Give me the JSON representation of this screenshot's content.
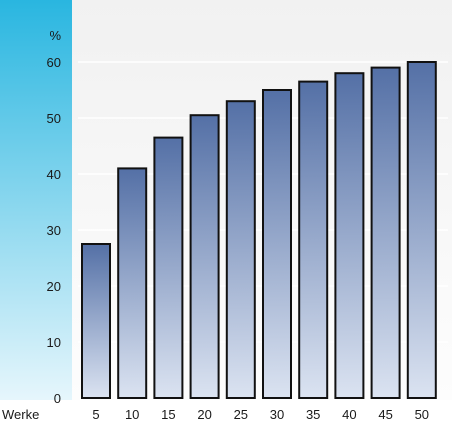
{
  "chart_data": {
    "type": "bar",
    "ylabel": "%",
    "xlabel": "Werke",
    "categories": [
      "5",
      "10",
      "15",
      "20",
      "25",
      "30",
      "35",
      "40",
      "45",
      "50"
    ],
    "values": [
      27.5,
      41,
      46.5,
      50.5,
      53,
      55,
      56.5,
      58,
      59,
      60
    ],
    "ylim": [
      0,
      60
    ],
    "yticks": [
      0,
      10,
      20,
      30,
      40,
      50,
      60
    ],
    "grid": true,
    "colors": {
      "left_band_top": "#29b6e0",
      "left_band_bottom": "#e6f6fc",
      "plot_bg_top": "#f1f1f1",
      "plot_bg_bottom": "#fdfdfd",
      "bar_top": "#5470a6",
      "bar_bottom": "#dbe3f1",
      "bar_outline": "#111111",
      "gridline": "#ffffff"
    }
  }
}
